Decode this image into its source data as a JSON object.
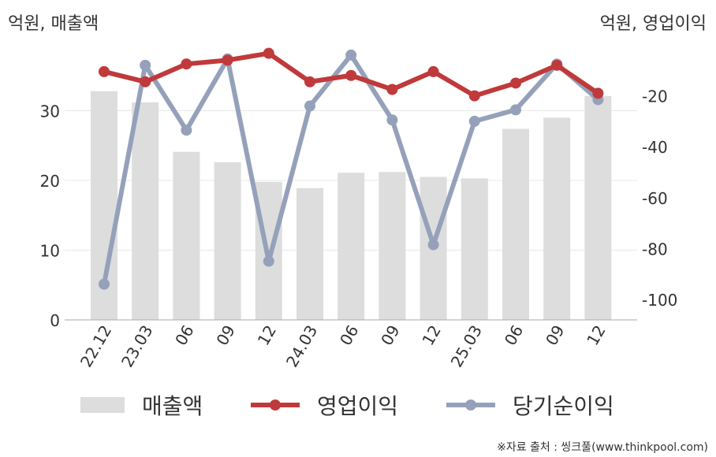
{
  "chart_data": {
    "type": "bar",
    "title": "",
    "ylabel_left": "억원, 매출액",
    "ylabel_right": "억원, 영업이익",
    "categories": [
      "22.12",
      "23.03",
      "06",
      "09",
      "12",
      "24.03",
      "06",
      "09",
      "12",
      "25.03",
      "06",
      "09",
      "12"
    ],
    "left_axis": {
      "ylim": [
        0,
        40
      ],
      "ticks": [
        0,
        10,
        20,
        30
      ]
    },
    "right_axis": {
      "ylim": [
        -110,
        0
      ],
      "ticks": [
        -100,
        -80,
        -60,
        -40,
        -20
      ]
    },
    "series": [
      {
        "name": "매출액",
        "type": "bar",
        "axis": "left",
        "color": "#dddddd",
        "values": [
          32.8,
          31.2,
          24.1,
          22.6,
          19.8,
          18.9,
          21.1,
          21.2,
          20.5,
          20.3,
          27.4,
          29.0,
          32.1
        ]
      },
      {
        "name": "영업이익",
        "type": "line",
        "axis": "right",
        "color": "#c0393b",
        "values": [
          -10.5,
          -14.5,
          -7.5,
          -6.0,
          -3.3,
          -14.5,
          -12.0,
          -17.5,
          -10.5,
          -20.0,
          -15.0,
          -8.0,
          -19.0
        ]
      },
      {
        "name": "당기순이익",
        "type": "line",
        "axis": "right",
        "color": "#95a1ba",
        "values": [
          -94.0,
          -8.0,
          -33.5,
          -5.5,
          -85.0,
          -24.0,
          -4.0,
          -29.5,
          -78.5,
          -30.0,
          -25.5,
          -7.5,
          -21.5
        ]
      }
    ],
    "legend": {
      "position": "bottom"
    },
    "grid": true
  },
  "source": "※자료 출처 : 씽크풀(www.thinkpool.com)"
}
